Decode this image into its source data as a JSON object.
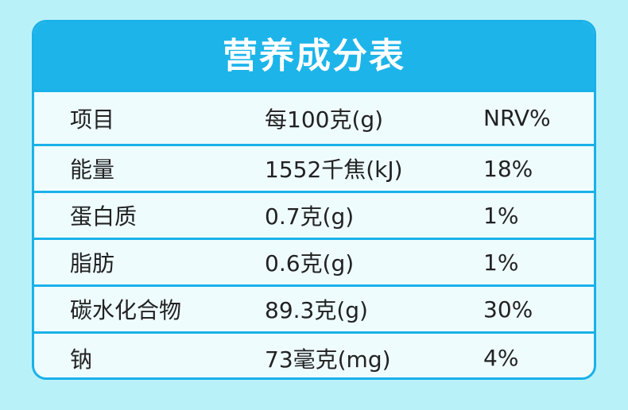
{
  "header": {
    "title": "营养成分表"
  },
  "table": {
    "columns": [
      "项目",
      "每100克(g)",
      "NRV%"
    ],
    "rows": [
      [
        "能量",
        "1552千焦(kJ)",
        "18%"
      ],
      [
        "蛋白质",
        "0.7克(g)",
        "1%"
      ],
      [
        "脂肪",
        "0.6克(g)",
        "1%"
      ],
      [
        "碳水化合物",
        "89.3克(g)",
        "30%"
      ],
      [
        "钠",
        "73毫克(mg)",
        "4%"
      ]
    ]
  }
}
